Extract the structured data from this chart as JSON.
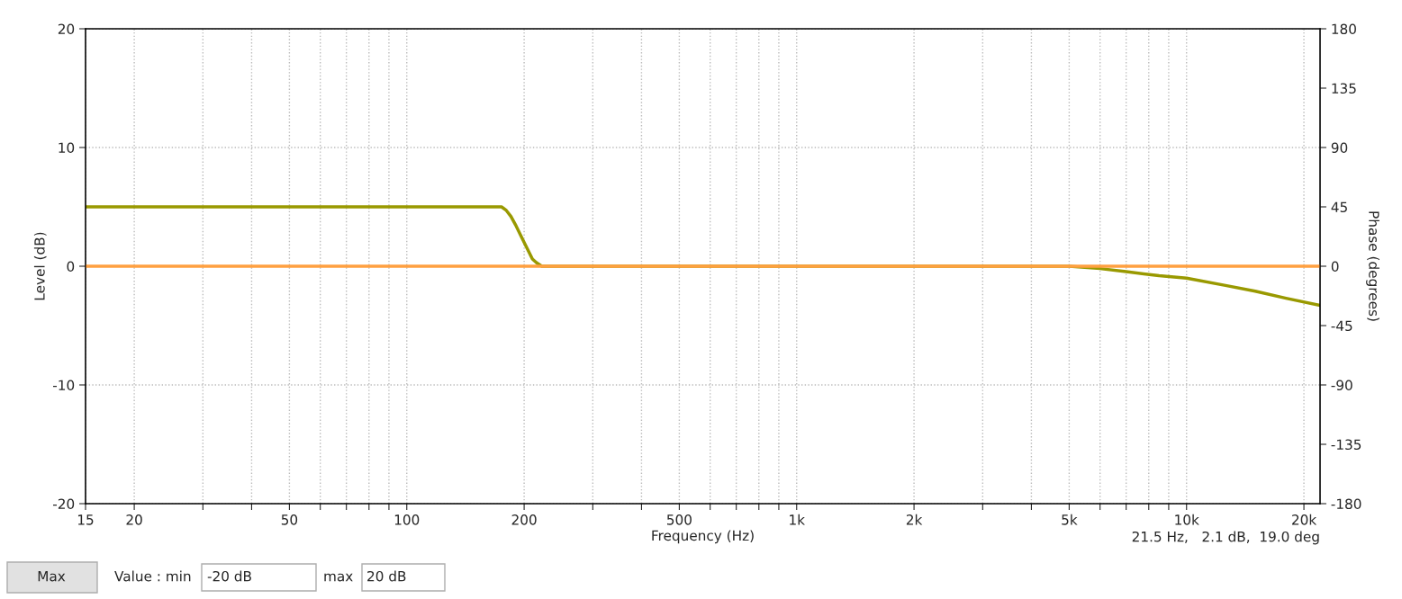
{
  "chart_data": {
    "type": "line",
    "xlabel": "Frequency (Hz)",
    "ylabel": "Level (dB)",
    "y2label": "Phase (degrees)",
    "log": "x",
    "grid": true,
    "marker": "none",
    "line_style": "solid",
    "xlim": [
      15,
      22000
    ],
    "ylim": [
      -20,
      20
    ],
    "y2lim": [
      -180,
      180
    ],
    "xticks": [
      15,
      20,
      {
        "value": 30,
        "label": null
      },
      {
        "value": 40,
        "label": null
      },
      50,
      {
        "value": 60,
        "label": null
      },
      {
        "value": 70,
        "label": null
      },
      {
        "value": 80,
        "label": null
      },
      {
        "value": 90,
        "label": null
      },
      100,
      200,
      {
        "value": 300,
        "label": null
      },
      {
        "value": 400,
        "label": null
      },
      500,
      {
        "value": 600,
        "label": null
      },
      {
        "value": 700,
        "label": null
      },
      {
        "value": 800,
        "label": null
      },
      {
        "value": 900,
        "label": null
      },
      {
        "value": 1000,
        "label": "1k"
      },
      {
        "value": 2000,
        "label": "2k"
      },
      {
        "value": 3000,
        "label": null
      },
      {
        "value": 4000,
        "label": null
      },
      {
        "value": 5000,
        "label": "5k"
      },
      {
        "value": 6000,
        "label": null
      },
      {
        "value": 7000,
        "label": null
      },
      {
        "value": 8000,
        "label": null
      },
      {
        "value": 9000,
        "label": null
      },
      {
        "value": 10000,
        "label": "10k"
      },
      {
        "value": 20000,
        "label": "20k"
      }
    ],
    "yticks": [
      -20,
      -10,
      0,
      10,
      20
    ],
    "y2ticks": [
      -180,
      -135,
      -90,
      -45,
      0,
      45,
      90,
      135,
      180
    ],
    "series": [
      {
        "color": "#ffa040",
        "axis": "y2",
        "x": [
          15,
          22000
        ],
        "values": [
          0,
          0
        ]
      },
      {
        "color": "#999900",
        "x": [
          15,
          175,
          180,
          185,
          190,
          200,
          210,
          215,
          222,
          5000,
          6000,
          7000,
          8500,
          10000,
          12500,
          15000,
          18000,
          22000
        ],
        "values": [
          5,
          5,
          4.7,
          4.2,
          3.5,
          2.0,
          0.6,
          0.3,
          0,
          0,
          -0.2,
          -0.45,
          -0.8,
          -1.0,
          -1.6,
          -2.1,
          -2.7,
          -3.3
        ]
      }
    ],
    "annotations": [
      "21.5 Hz,   2.1 dB,  19.0 deg",
      "Max",
      "Value : min",
      "-20 dB",
      "max",
      "20 dB"
    ]
  }
}
